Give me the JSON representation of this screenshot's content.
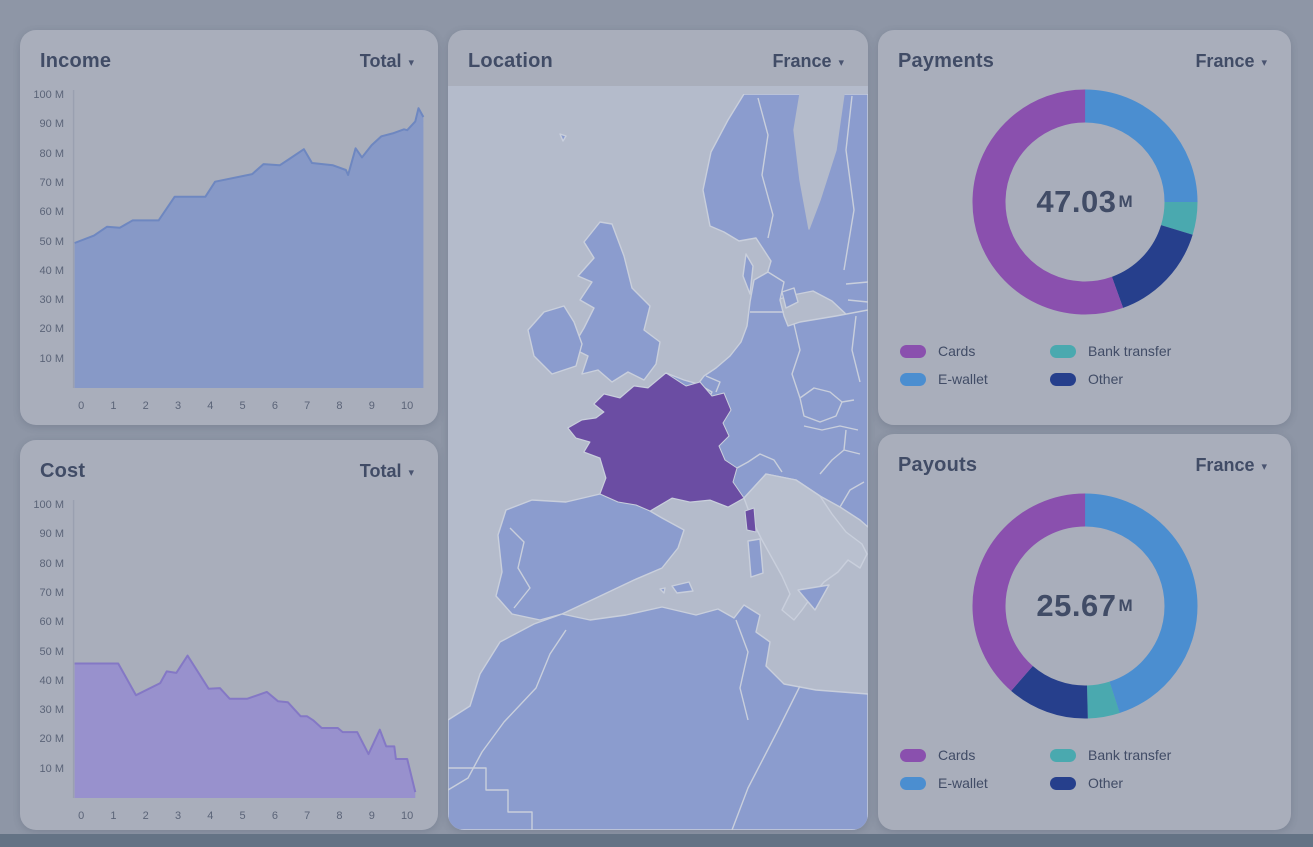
{
  "theme": {
    "background": "#8e96a6",
    "card_background": "#a9aebb",
    "title_color": "#414c66",
    "tick_color": "#5b6478",
    "axis_line_color": "#9aa0b0",
    "bottom_edge_color": "#647385",
    "caret_icon": "▾",
    "map": {
      "sea": "#b4bbcb",
      "land": "#8b9cce",
      "border": "#c9cfdc",
      "highlight": "#6b4da3",
      "nodata": "#b9c0cf"
    }
  },
  "location_card": {
    "title": "Location",
    "dropdown": "France",
    "highlighted_country": "France"
  },
  "chart_data": [
    {
      "id": "income",
      "type": "area",
      "title": "Income",
      "dropdown": "Total",
      "ylim": [
        0,
        100
      ],
      "xlim": [
        -0.25,
        10.65
      ],
      "y_tick_labels": [
        "100 M",
        "90 M",
        "80 M",
        "70 M",
        "60 M",
        "50 M",
        "40 M",
        "30 M",
        "20 M",
        "10 M"
      ],
      "x_tick_labels": [
        "0",
        "1",
        "2",
        "3",
        "4",
        "5",
        "6",
        "7",
        "8",
        "9",
        "10"
      ],
      "fill": "#8397c9",
      "line": "#6e87c0",
      "points": [
        [
          -0.2,
          49.5
        ],
        [
          0.4,
          52
        ],
        [
          0.8,
          55
        ],
        [
          1.2,
          54.7
        ],
        [
          1.6,
          57.2
        ],
        [
          2.4,
          57.2
        ],
        [
          2.9,
          65.3
        ],
        [
          3.85,
          65.3
        ],
        [
          4.15,
          70.4
        ],
        [
          5.3,
          73
        ],
        [
          5.65,
          76.4
        ],
        [
          6.15,
          76
        ],
        [
          6.4,
          77.8
        ],
        [
          6.9,
          81.5
        ],
        [
          7.15,
          76.8
        ],
        [
          7.8,
          76
        ],
        [
          8.2,
          74.4
        ],
        [
          8.27,
          72.7
        ],
        [
          8.5,
          81.8
        ],
        [
          8.7,
          78.7
        ],
        [
          9.0,
          82.9
        ],
        [
          9.3,
          85.9
        ],
        [
          9.65,
          86.9
        ],
        [
          10.0,
          88.3
        ],
        [
          10.1,
          88
        ],
        [
          10.35,
          91
        ],
        [
          10.45,
          95.5
        ],
        [
          10.6,
          92.5
        ]
      ]
    },
    {
      "id": "cost",
      "type": "area",
      "title": "Cost",
      "dropdown": "Total",
      "ylim": [
        0,
        100
      ],
      "xlim": [
        -0.25,
        10.65
      ],
      "y_tick_labels": [
        "100 M",
        "90 M",
        "80 M",
        "70 M",
        "60 M",
        "50 M",
        "40 M",
        "30 M",
        "20 M",
        "10 M"
      ],
      "x_tick_labels": [
        "0",
        "1",
        "2",
        "3",
        "4",
        "5",
        "6",
        "7",
        "8",
        "9",
        "10"
      ],
      "fill": "#968ecf",
      "line": "#8478c5",
      "points": [
        [
          -0.2,
          45.9
        ],
        [
          1.15,
          45.9
        ],
        [
          1.7,
          35.1
        ],
        [
          2.45,
          39.2
        ],
        [
          2.65,
          43.2
        ],
        [
          2.95,
          42.7
        ],
        [
          3.3,
          48.6
        ],
        [
          3.95,
          37.3
        ],
        [
          4.3,
          37.5
        ],
        [
          4.6,
          33.9
        ],
        [
          5.15,
          33.9
        ],
        [
          5.75,
          36.2
        ],
        [
          6.1,
          33
        ],
        [
          6.4,
          32.7
        ],
        [
          6.8,
          27.9
        ],
        [
          7.0,
          27.9
        ],
        [
          7.2,
          26.4
        ],
        [
          7.45,
          23.9
        ],
        [
          7.95,
          23.9
        ],
        [
          8.1,
          22.5
        ],
        [
          8.55,
          22.5
        ],
        [
          8.9,
          15
        ],
        [
          9.25,
          23.3
        ],
        [
          9.45,
          17.6
        ],
        [
          9.7,
          17.6
        ],
        [
          9.75,
          13.3
        ],
        [
          10.1,
          13.3
        ],
        [
          10.35,
          2
        ]
      ]
    },
    {
      "id": "payments",
      "type": "donut",
      "title": "Payments",
      "dropdown": "France",
      "center_value": "47.03",
      "center_unit": "M",
      "segments": [
        {
          "label": "E-wallet",
          "pct": 25
        },
        {
          "label": "Bank transfer",
          "pct": 4.7
        },
        {
          "label": "Other",
          "pct": 14.8
        },
        {
          "label": "Cards",
          "pct": 55.5
        }
      ],
      "colors": {
        "Cards": "#8a50ae",
        "E-wallet": "#4b8ed0",
        "Bank transfer": "#4aa9af",
        "Other": "#263f8c"
      },
      "legend": [
        "Cards",
        "E-wallet",
        "Bank transfer",
        "Other"
      ]
    },
    {
      "id": "payouts",
      "type": "donut",
      "title": "Payouts",
      "dropdown": "France",
      "center_value": "25.67",
      "center_unit": "M",
      "segments": [
        {
          "label": "E-wallet",
          "pct": 45
        },
        {
          "label": "Bank transfer",
          "pct": 4.6
        },
        {
          "label": "Other",
          "pct": 11.8
        },
        {
          "label": "Cards",
          "pct": 38.6
        }
      ],
      "colors": {
        "Cards": "#8a50ae",
        "E-wallet": "#4b8ed0",
        "Bank transfer": "#4aa9af",
        "Other": "#263f8c"
      },
      "legend": [
        "Cards",
        "E-wallet",
        "Bank transfer",
        "Other"
      ]
    }
  ]
}
